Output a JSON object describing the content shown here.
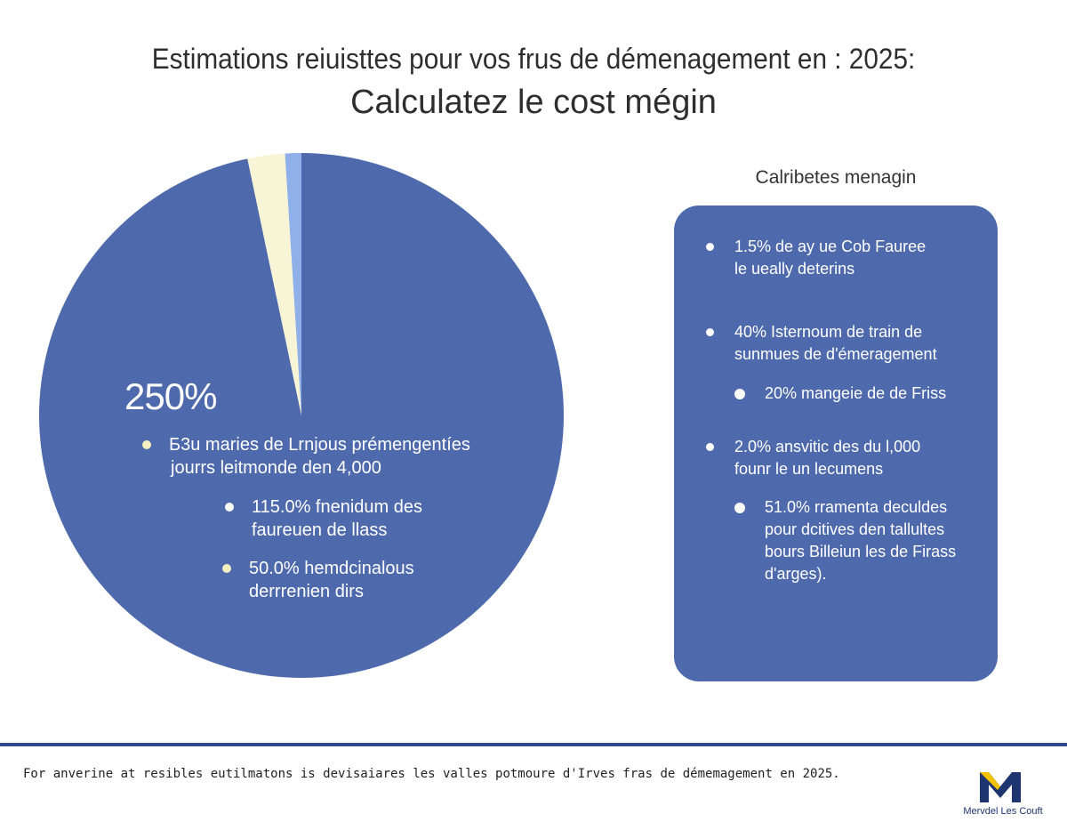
{
  "title": {
    "line1": "Estimations reiuisttes pour vos frus de démenagement en : 2025:",
    "line2": "Calculatez le  cost mégin"
  },
  "colors": {
    "primary_slice": "#4e6aad",
    "cream_slice": "#f8f5d6",
    "light_blue_slice": "#8fb0e8",
    "panel": "#4e6aad",
    "divider": "#2f4a8a",
    "bullet_cream": "#f4efc2"
  },
  "chart_data": {
    "type": "pie",
    "title": "",
    "slices": [
      {
        "label": "",
        "value": 96.7,
        "color": "#4e6aad"
      },
      {
        "label": "",
        "value": 2.3,
        "color": "#f8f5d6"
      },
      {
        "label": "",
        "value": 1.0,
        "color": "#8fb0e8"
      }
    ],
    "big_label": "250%",
    "annotations": [
      {
        "text1": "Б3u maries de Lrnjous prémengentíes",
        "text2": "jourrs leitmonde den 4,000",
        "bullet": "cream"
      },
      {
        "text1": "115.0% fnenidum des",
        "text2": "faureuen de llass",
        "bullet": "white"
      },
      {
        "text1": "50.0% hemdcinalous",
        "text2": "derrrenien dirs",
        "bullet": "cream"
      }
    ],
    "legend_title": "Calribetes menagin",
    "legend_items": [
      {
        "line1": "1.5% de ay ue Cob Fauree",
        "line2": "le ueally deterins",
        "line3": "",
        "line4": ""
      },
      {
        "line1": "40% Isternoum de train de",
        "line2": "sunmues de d'émeragement",
        "line3": "",
        "line4": ""
      },
      {
        "line1": "20% mangeie de de Friss",
        "line2": "",
        "line3": "",
        "line4": ""
      },
      {
        "line1": "2.0% ansvitic des du l,000",
        "line2": "founr le un lecumens",
        "line3": "",
        "line4": ""
      },
      {
        "line1": "51.0% rramenta deculdes",
        "line2": "pour dcitives den tallultes",
        "line3": "bours Billeiun les de Firass",
        "line4": "d'arges)."
      }
    ]
  },
  "footer": {
    "note": "For anverine at resibles eutilmatons is devisaiares les valles potmoure d'Irves fras de démemagement en 2025.",
    "brand": "Mervdel Les Couft"
  }
}
